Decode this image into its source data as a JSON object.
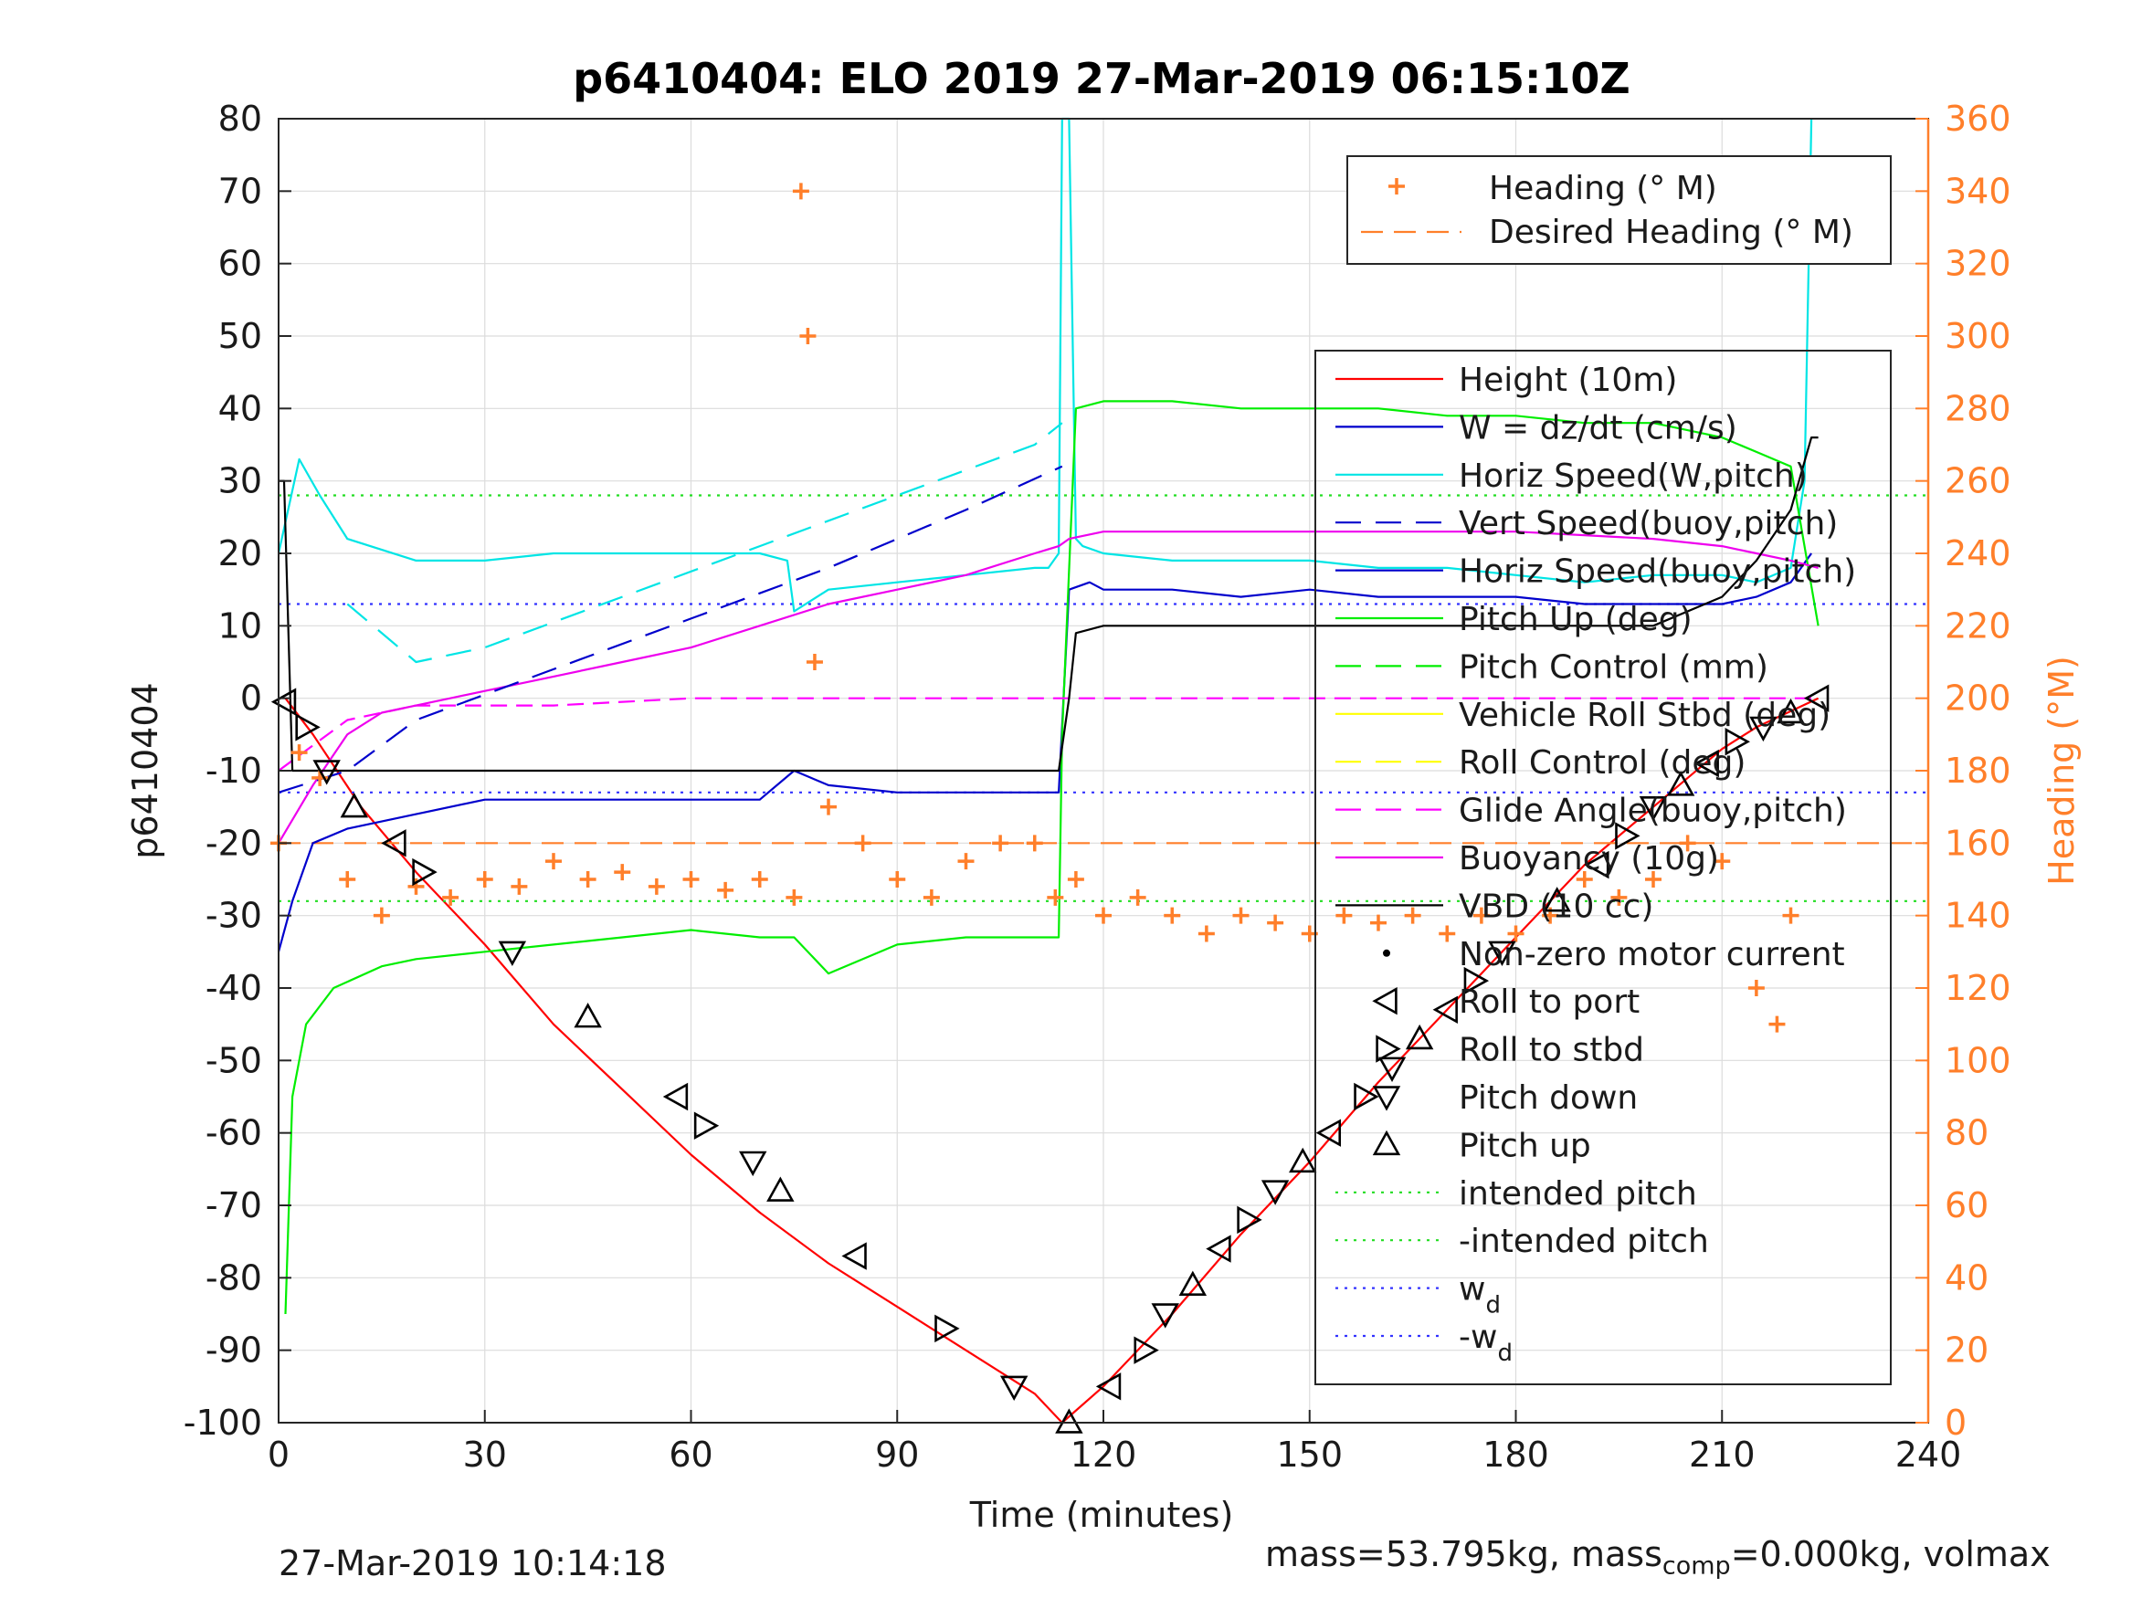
{
  "chart_data": {
    "type": "line",
    "title": "p6410404: ELO 2019 27-Mar-2019 06:15:10Z",
    "xlabel": "Time (minutes)",
    "ylabel": "p6410404",
    "y2label": "Heading (°M)",
    "xlim": [
      0,
      240
    ],
    "ylim": [
      -100,
      80
    ],
    "y2lim": [
      0,
      360
    ],
    "xticks": [
      "0",
      "30",
      "60",
      "90",
      "120",
      "150",
      "180",
      "210",
      "240"
    ],
    "yticks": [
      "80",
      "70",
      "60",
      "50",
      "40",
      "30",
      "20",
      "10",
      "0",
      "-10",
      "-20",
      "-30",
      "-40",
      "-50",
      "-60",
      "-70",
      "-80",
      "-90",
      "-100"
    ],
    "y2ticks": [
      "360",
      "340",
      "320",
      "300",
      "280",
      "260",
      "240",
      "220",
      "200",
      "180",
      "160",
      "140",
      "120",
      "100",
      "80",
      "60",
      "40",
      "20",
      "0"
    ],
    "grid": true,
    "legend_top": [
      "Heading (° M)",
      "Desired Heading (° M)"
    ],
    "legend_main": [
      "Height (10m)",
      "W = dz/dt (cm/s)",
      "Horiz Speed(W,pitch)",
      "Vert Speed(buoy,pitch)",
      "Horiz Speed(buoy,pitch)",
      "Pitch Up (deg)",
      "Pitch Control (mm)",
      "Vehicle Roll Stbd (deg)",
      "Roll Control (deg)",
      "Glide Angle(buoy,pitch)",
      "Buoyancy (10g)",
      "VBD (10 cc)",
      "Non-zero motor current",
      "Roll to port",
      "Roll to stbd",
      "Pitch down",
      "Pitch up",
      "intended pitch",
      "-intended pitch",
      "w",
      "-w"
    ],
    "legend_main_sub": [
      "d",
      "d"
    ],
    "series": [
      {
        "name": "Height (10m)",
        "color": "#ff0000",
        "x": [
          1,
          5,
          12,
          20,
          30,
          40,
          50,
          60,
          70,
          80,
          90,
          100,
          110,
          114,
          120,
          130,
          140,
          150,
          160,
          170,
          180,
          190,
          200,
          210,
          215,
          224
        ],
        "y": [
          0,
          -5,
          -15,
          -24,
          -34,
          -45,
          -54,
          -63,
          -71,
          -78,
          -84,
          -90,
          -96,
          -100,
          -95,
          -85,
          -74,
          -64,
          -53,
          -43,
          -33,
          -23,
          -15,
          -7,
          -4,
          0
        ]
      },
      {
        "name": "Desired Heading (° M)",
        "color": "#ff7f2a",
        "x": [
          0,
          240
        ],
        "y2": [
          160,
          160
        ]
      },
      {
        "name": "intended pitch",
        "color": "#22dd22",
        "x": [
          0,
          240
        ],
        "y": [
          28,
          28
        ]
      },
      {
        "name": "-intended pitch",
        "color": "#22dd22",
        "x": [
          0,
          240
        ],
        "y": [
          -28,
          -28
        ]
      },
      {
        "name": "w",
        "color": "#3333ff",
        "x": [
          0,
          240
        ],
        "y": [
          13,
          13
        ]
      },
      {
        "name": "-w",
        "color": "#3333ff",
        "x": [
          0,
          240
        ],
        "y": [
          -13,
          -13
        ]
      },
      {
        "name": "Horiz Speed(W,pitch)",
        "color": "#00e5e5",
        "x": [
          0,
          3,
          6,
          10,
          20,
          30,
          40,
          50,
          60,
          70,
          74,
          75,
          80,
          90,
          100,
          110,
          112,
          113.5,
          114,
          115,
          116,
          117,
          120,
          130,
          140,
          150,
          160,
          170,
          180,
          190,
          200,
          210,
          215,
          220,
          222,
          223
        ],
        "y": [
          20,
          33,
          28,
          22,
          19,
          19,
          20,
          20,
          20,
          20,
          19,
          12,
          15,
          16,
          17,
          18,
          18,
          20,
          80,
          80,
          22,
          21,
          20,
          19,
          19,
          19,
          18,
          18,
          17,
          16,
          17,
          17,
          16,
          18,
          30,
          80
        ]
      },
      {
        "name": "Vert Speed(buoy,pitch)",
        "color": "#0000cc",
        "x": [
          0,
          2,
          5,
          10,
          20,
          30,
          40,
          50,
          60,
          70,
          75,
          80,
          90,
          100,
          110,
          113.5,
          115,
          118,
          120,
          130,
          140,
          150,
          160,
          170,
          180,
          190,
          200,
          210,
          215,
          220,
          223
        ],
        "y": [
          -35,
          -28,
          -20,
          -18,
          -16,
          -14,
          -14,
          -14,
          -14,
          -14,
          -10,
          -12,
          -13,
          -13,
          -13,
          -13,
          15,
          16,
          15,
          15,
          14,
          15,
          14,
          14,
          14,
          13,
          13,
          13,
          14,
          16,
          20
        ]
      },
      {
        "name": "Pitch Up (deg)",
        "color": "#00ee00",
        "x": [
          1,
          2,
          4,
          8,
          15,
          20,
          30,
          40,
          50,
          60,
          70,
          75,
          80,
          90,
          100,
          110,
          113.5,
          114,
          116,
          120,
          130,
          140,
          150,
          160,
          170,
          180,
          190,
          200,
          210,
          215,
          220,
          224
        ],
        "y": [
          -85,
          -55,
          -45,
          -40,
          -37,
          -36,
          -35,
          -34,
          -33,
          -32,
          -33,
          -33,
          -38,
          -34,
          -33,
          -33,
          -33,
          -5,
          40,
          41,
          41,
          40,
          40,
          40,
          39,
          39,
          38,
          38,
          36,
          34,
          32,
          10
        ]
      },
      {
        "name": "Glide Angle(buoy,pitch)",
        "color": "#ff00ff",
        "dash": "18,10",
        "x": [
          0,
          10,
          20,
          40,
          60,
          80,
          100,
          113.5,
          114,
          120,
          140,
          160,
          180,
          200,
          220,
          224
        ],
        "y": [
          -10,
          -3,
          -1,
          -1,
          0,
          0,
          0,
          0,
          0,
          0,
          0,
          0,
          0,
          0,
          0,
          0
        ]
      },
      {
        "name": "Buoyancy (10g)",
        "color": "#ee00ee",
        "x": [
          0,
          5,
          10,
          15,
          20,
          30,
          40,
          50,
          60,
          70,
          80,
          90,
          100,
          110,
          113.5,
          115,
          120,
          140,
          160,
          180,
          200,
          210,
          215,
          220,
          224
        ],
        "y": [
          -20,
          -12,
          -5,
          -2,
          -1,
          1,
          3,
          5,
          7,
          10,
          13,
          15,
          17,
          20,
          21,
          22,
          23,
          23,
          23,
          23,
          22,
          21,
          20,
          19,
          18
        ]
      },
      {
        "name": "VBD (10 cc)",
        "color": "#000000",
        "x": [
          0,
          0.8,
          2,
          10,
          20,
          40,
          60,
          80,
          100,
          113.5,
          115,
          116,
          120,
          140,
          160,
          180,
          200,
          210,
          215,
          220,
          223,
          224
        ],
        "y": [
          30,
          30,
          -10,
          -10,
          -10,
          -10,
          -10,
          -10,
          -10,
          -10,
          0,
          9,
          10,
          10,
          10,
          10,
          10,
          14,
          19,
          26,
          36,
          36
        ]
      },
      {
        "name": "Horiz Speed dashed",
        "color": "#00e5e5",
        "dash": "28,16",
        "x": [
          10,
          20,
          30,
          50,
          70,
          90,
          110,
          114
        ],
        "y": [
          13,
          5,
          7,
          14,
          21,
          28,
          35,
          38
        ]
      },
      {
        "name": "Vert Speed dashed",
        "color": "#0000cc",
        "dash": "28,16",
        "x": [
          0,
          10,
          20,
          40,
          60,
          80,
          100,
          114
        ],
        "y": [
          -13,
          -10,
          -3,
          4,
          11,
          18,
          26,
          32
        ]
      },
      {
        "name": "Heading (° M)",
        "color": "#ff7f2a",
        "x": [
          0,
          3,
          6,
          10,
          15,
          20,
          25,
          30,
          35,
          40,
          45,
          50,
          55,
          60,
          65,
          70,
          75,
          76,
          77,
          78,
          80,
          85,
          90,
          95,
          100,
          105,
          110,
          113,
          116,
          120,
          125,
          130,
          135,
          140,
          145,
          150,
          155,
          160,
          165,
          170,
          175,
          180,
          185,
          190,
          195,
          200,
          205,
          210,
          215,
          218,
          220
        ],
        "y2": [
          160,
          185,
          178,
          150,
          140,
          148,
          145,
          150,
          148,
          155,
          150,
          152,
          148,
          150,
          147,
          150,
          145,
          340,
          300,
          210,
          170,
          160,
          150,
          145,
          155,
          160,
          160,
          145,
          150,
          140,
          145,
          140,
          135,
          140,
          138,
          135,
          140,
          138,
          140,
          135,
          140,
          135,
          140,
          150,
          145,
          150,
          160,
          155,
          120,
          110,
          140
        ]
      }
    ],
    "markers_roll": [
      {
        "t": 1,
        "y": -0.5
      },
      {
        "t": 4,
        "y": -4
      },
      {
        "t": 7,
        "y": -10
      },
      {
        "t": 11,
        "y": -15
      },
      {
        "t": 17,
        "y": -20
      },
      {
        "t": 21,
        "y": -24
      },
      {
        "t": 34,
        "y": -35
      },
      {
        "t": 45,
        "y": -44
      },
      {
        "t": 58,
        "y": -55
      },
      {
        "t": 62,
        "y": -59
      },
      {
        "t": 69,
        "y": -64
      },
      {
        "t": 73,
        "y": -68
      },
      {
        "t": 84,
        "y": -77
      },
      {
        "t": 97,
        "y": -87
      },
      {
        "t": 107,
        "y": -95
      },
      {
        "t": 115,
        "y": -100
      },
      {
        "t": 121,
        "y": -95
      },
      {
        "t": 126,
        "y": -90
      },
      {
        "t": 129,
        "y": -85
      },
      {
        "t": 133,
        "y": -81
      },
      {
        "t": 137,
        "y": -76
      },
      {
        "t": 141,
        "y": -72
      },
      {
        "t": 145,
        "y": -68
      },
      {
        "t": 149,
        "y": -64
      },
      {
        "t": 153,
        "y": -60
      },
      {
        "t": 158,
        "y": -55
      },
      {
        "t": 162,
        "y": -51
      },
      {
        "t": 166,
        "y": -47
      },
      {
        "t": 170,
        "y": -43
      },
      {
        "t": 174,
        "y": -39
      },
      {
        "t": 178,
        "y": -35
      },
      {
        "t": 186,
        "y": -28
      },
      {
        "t": 192,
        "y": -23
      },
      {
        "t": 196,
        "y": -19
      },
      {
        "t": 200,
        "y": -15
      },
      {
        "t": 204,
        "y": -12
      },
      {
        "t": 208,
        "y": -9
      },
      {
        "t": 212,
        "y": -6
      },
      {
        "t": 216,
        "y": -4
      },
      {
        "t": 220,
        "y": -2
      },
      {
        "t": 224,
        "y": 0
      }
    ]
  },
  "footer": {
    "datetime": "27-Mar-2019 10:14:18",
    "mass_a": "mass=53.795kg, mass",
    "mass_sub": "comp",
    "mass_b": "=0.000kg, volmax"
  }
}
